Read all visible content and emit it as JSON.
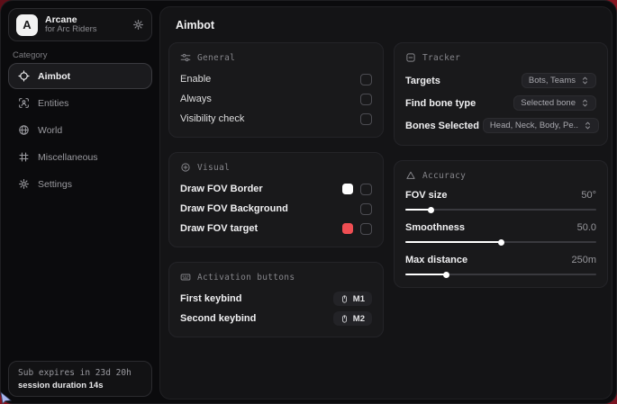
{
  "app": {
    "name": "Arcane",
    "subtitle": "for Arc Riders",
    "logo_letter": "A",
    "page_title": "Aimbot"
  },
  "sidebar": {
    "category_label": "Category",
    "items": [
      {
        "label": "Aimbot",
        "icon": "crosshair-icon",
        "active": true
      },
      {
        "label": "Entities",
        "icon": "entities-icon",
        "active": false
      },
      {
        "label": "World",
        "icon": "globe-icon",
        "active": false
      },
      {
        "label": "Miscellaneous",
        "icon": "grid-icon",
        "active": false
      },
      {
        "label": "Settings",
        "icon": "gear-icon",
        "active": false
      }
    ],
    "subscription": {
      "line1": "Sub expires in 23d 20h",
      "line2": "session duration 14s"
    }
  },
  "cards": {
    "general": {
      "title": "General",
      "rows": [
        {
          "label": "Enable",
          "checked": false
        },
        {
          "label": "Always",
          "checked": false
        },
        {
          "label": "Visibility check",
          "checked": false
        }
      ]
    },
    "visual": {
      "title": "Visual",
      "rows": [
        {
          "label": "Draw FOV Border",
          "swatch": "#ffffff",
          "checked": false
        },
        {
          "label": "Draw FOV Background",
          "swatch": null,
          "checked": false
        },
        {
          "label": "Draw FOV target",
          "swatch": "#ef4e53",
          "checked": false
        }
      ]
    },
    "activation": {
      "title": "Activation buttons",
      "rows": [
        {
          "label": "First keybind",
          "key": "M1"
        },
        {
          "label": "Second keybind",
          "key": "M2"
        }
      ]
    },
    "tracker": {
      "title": "Tracker",
      "rows": [
        {
          "label": "Targets",
          "value": "Bots, Teams"
        },
        {
          "label": "Find bone type",
          "value": "Selected bone"
        },
        {
          "label": "Bones Selected",
          "value": "Head, Neck, Body, Pe.."
        }
      ]
    },
    "accuracy": {
      "title": "Accuracy",
      "rows": [
        {
          "label": "FOV size",
          "value": "50°",
          "percent": 13
        },
        {
          "label": "Smoothness",
          "value": "50.0",
          "percent": 50
        },
        {
          "label": "Max distance",
          "value": "250m",
          "percent": 21
        }
      ]
    }
  },
  "colors": {
    "background_red": "#7a1320",
    "accent_red_swatch": "#ef4e53",
    "white_swatch": "#ffffff",
    "slider_fill": "#ffffff",
    "cursor": "#a8b6ee"
  }
}
